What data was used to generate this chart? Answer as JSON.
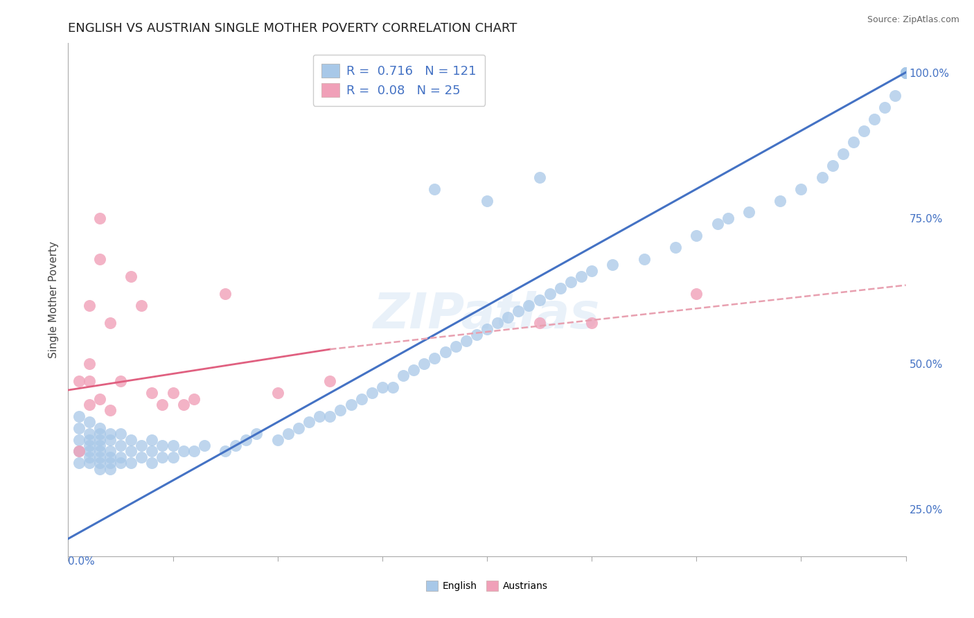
{
  "title": "ENGLISH VS AUSTRIAN SINGLE MOTHER POVERTY CORRELATION CHART",
  "source": "Source: ZipAtlas.com",
  "ylabel": "Single Mother Poverty",
  "right_yticks": [
    "25.0%",
    "50.0%",
    "75.0%",
    "100.0%"
  ],
  "right_ytick_vals": [
    0.25,
    0.5,
    0.75,
    1.0
  ],
  "xlim": [
    0.0,
    0.8
  ],
  "ylim": [
    0.17,
    1.05
  ],
  "english_R": 0.716,
  "english_N": 121,
  "austrian_R": 0.08,
  "austrian_N": 25,
  "english_color": "#a8c8e8",
  "austrian_color": "#f0a0b8",
  "english_line_color": "#4472c4",
  "austrian_line_color": "#e06080",
  "austrian_dash_color": "#e8a0b0",
  "grid_color": "#d0d0d0",
  "watermark": "ZIPatlas",
  "background_color": "#ffffff",
  "title_fontsize": 13,
  "legend_fontsize": 13,
  "axis_label_fontsize": 11,
  "tick_fontsize": 11,
  "english_x": [
    0.01,
    0.01,
    0.01,
    0.01,
    0.01,
    0.02,
    0.02,
    0.02,
    0.02,
    0.02,
    0.02,
    0.02,
    0.03,
    0.03,
    0.03,
    0.03,
    0.03,
    0.03,
    0.03,
    0.03,
    0.04,
    0.04,
    0.04,
    0.04,
    0.04,
    0.04,
    0.05,
    0.05,
    0.05,
    0.05,
    0.06,
    0.06,
    0.06,
    0.07,
    0.07,
    0.08,
    0.08,
    0.08,
    0.09,
    0.09,
    0.1,
    0.1,
    0.11,
    0.12,
    0.13,
    0.15,
    0.16,
    0.17,
    0.18,
    0.2,
    0.21,
    0.22,
    0.23,
    0.24,
    0.25,
    0.26,
    0.27,
    0.28,
    0.29,
    0.3,
    0.31,
    0.32,
    0.33,
    0.34,
    0.35,
    0.36,
    0.37,
    0.38,
    0.39,
    0.4,
    0.41,
    0.42,
    0.43,
    0.44,
    0.45,
    0.46,
    0.47,
    0.48,
    0.49,
    0.5,
    0.35,
    0.4,
    0.45,
    0.52,
    0.55,
    0.58,
    0.6,
    0.62,
    0.63,
    0.65,
    0.68,
    0.7,
    0.72,
    0.73,
    0.74,
    0.75,
    0.76,
    0.77,
    0.78,
    0.79,
    0.8,
    0.8,
    0.8,
    0.8,
    0.8,
    0.8,
    0.8,
    0.8,
    0.8,
    0.8,
    0.8,
    0.8,
    0.8,
    0.8,
    0.8,
    0.8,
    0.8,
    0.8,
    0.8,
    0.8,
    0.8
  ],
  "english_y": [
    0.33,
    0.35,
    0.37,
    0.39,
    0.41,
    0.33,
    0.34,
    0.35,
    0.36,
    0.37,
    0.38,
    0.4,
    0.32,
    0.33,
    0.34,
    0.35,
    0.36,
    0.37,
    0.38,
    0.39,
    0.32,
    0.33,
    0.34,
    0.35,
    0.37,
    0.38,
    0.33,
    0.34,
    0.36,
    0.38,
    0.33,
    0.35,
    0.37,
    0.34,
    0.36,
    0.33,
    0.35,
    0.37,
    0.34,
    0.36,
    0.34,
    0.36,
    0.35,
    0.35,
    0.36,
    0.35,
    0.36,
    0.37,
    0.38,
    0.37,
    0.38,
    0.39,
    0.4,
    0.41,
    0.41,
    0.42,
    0.43,
    0.44,
    0.45,
    0.46,
    0.46,
    0.48,
    0.49,
    0.5,
    0.51,
    0.52,
    0.53,
    0.54,
    0.55,
    0.56,
    0.57,
    0.58,
    0.59,
    0.6,
    0.61,
    0.62,
    0.63,
    0.64,
    0.65,
    0.66,
    0.8,
    0.78,
    0.82,
    0.67,
    0.68,
    0.7,
    0.72,
    0.74,
    0.75,
    0.76,
    0.78,
    0.8,
    0.82,
    0.84,
    0.86,
    0.88,
    0.9,
    0.92,
    0.94,
    0.96,
    1.0,
    1.0,
    1.0,
    1.0,
    1.0,
    1.0,
    1.0,
    1.0,
    1.0,
    1.0,
    1.0,
    1.0,
    1.0,
    1.0,
    1.0,
    1.0,
    1.0,
    1.0,
    1.0,
    1.0,
    1.0
  ],
  "austrian_x": [
    0.01,
    0.01,
    0.02,
    0.02,
    0.02,
    0.03,
    0.03,
    0.04,
    0.04,
    0.05,
    0.06,
    0.07,
    0.08,
    0.09,
    0.1,
    0.11,
    0.12,
    0.15,
    0.2,
    0.25,
    0.45,
    0.5,
    0.6,
    0.02,
    0.03
  ],
  "austrian_y": [
    0.47,
    0.35,
    0.6,
    0.5,
    0.43,
    0.68,
    0.75,
    0.42,
    0.57,
    0.47,
    0.65,
    0.6,
    0.45,
    0.43,
    0.45,
    0.43,
    0.44,
    0.62,
    0.45,
    0.47,
    0.57,
    0.57,
    0.62,
    0.47,
    0.44
  ],
  "english_line_x0": 0.0,
  "english_line_y0": 0.2,
  "english_line_x1": 0.8,
  "english_line_y1": 1.0,
  "austrian_line_solid_x0": 0.0,
  "austrian_line_solid_y0": 0.455,
  "austrian_line_solid_x1": 0.25,
  "austrian_line_solid_y1": 0.525,
  "austrian_line_dash_x0": 0.25,
  "austrian_line_dash_y0": 0.525,
  "austrian_line_dash_x1": 0.8,
  "austrian_line_dash_y1": 0.635
}
